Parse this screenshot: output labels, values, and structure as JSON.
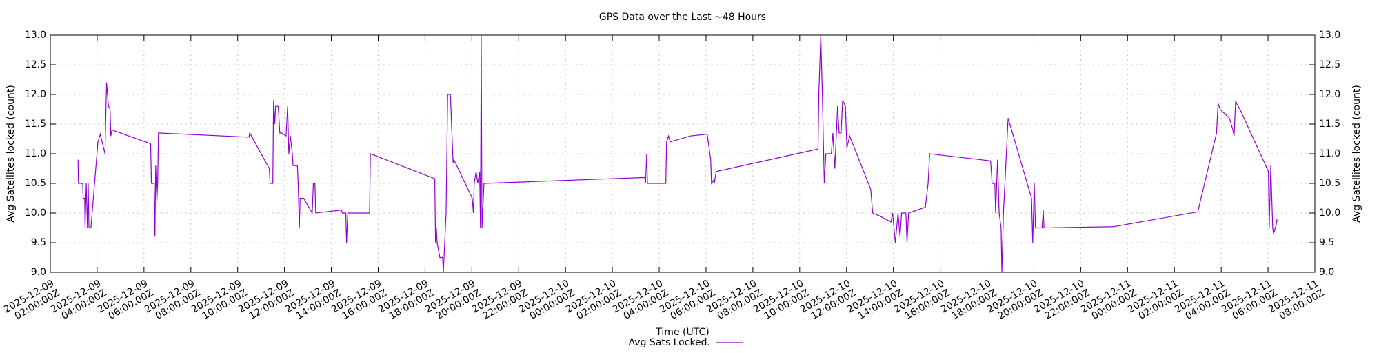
{
  "chart_data": {
    "type": "line",
    "title": "GPS Data over the Last ~48 Hours",
    "xlabel": "Time (UTC)",
    "ylabel": "Avg Satellites locked (count)",
    "y2label": "Avg Satellites locked (count)",
    "xlim": [
      "2025-12-09T02:00:00Z",
      "2025-12-11T08:00:00Z"
    ],
    "xticks": [
      {
        "value": "2025-12-09T02:00:00Z",
        "label": "2025-12-09\n02:00:00Z"
      },
      {
        "value": "2025-12-09T04:00:00Z",
        "label": "2025-12-09\n04:00:00Z"
      },
      {
        "value": "2025-12-09T06:00:00Z",
        "label": "2025-12-09\n06:00:00Z"
      },
      {
        "value": "2025-12-09T08:00:00Z",
        "label": "2025-12-09\n08:00:00Z"
      },
      {
        "value": "2025-12-09T10:00:00Z",
        "label": "2025-12-09\n10:00:00Z"
      },
      {
        "value": "2025-12-09T12:00:00Z",
        "label": "2025-12-09\n12:00:00Z"
      },
      {
        "value": "2025-12-09T14:00:00Z",
        "label": "2025-12-09\n14:00:00Z"
      },
      {
        "value": "2025-12-09T16:00:00Z",
        "label": "2025-12-09\n16:00:00Z"
      },
      {
        "value": "2025-12-09T18:00:00Z",
        "label": "2025-12-09\n18:00:00Z"
      },
      {
        "value": "2025-12-09T20:00:00Z",
        "label": "2025-12-09\n20:00:00Z"
      },
      {
        "value": "2025-12-09T22:00:00Z",
        "label": "2025-12-09\n22:00:00Z"
      },
      {
        "value": "2025-12-10T00:00:00Z",
        "label": "2025-12-10\n00:00:00Z"
      },
      {
        "value": "2025-12-10T02:00:00Z",
        "label": "2025-12-10\n02:00:00Z"
      },
      {
        "value": "2025-12-10T04:00:00Z",
        "label": "2025-12-10\n04:00:00Z"
      },
      {
        "value": "2025-12-10T06:00:00Z",
        "label": "2025-12-10\n06:00:00Z"
      },
      {
        "value": "2025-12-10T08:00:00Z",
        "label": "2025-12-10\n08:00:00Z"
      },
      {
        "value": "2025-12-10T10:00:00Z",
        "label": "2025-12-10\n10:00:00Z"
      },
      {
        "value": "2025-12-10T12:00:00Z",
        "label": "2025-12-10\n12:00:00Z"
      },
      {
        "value": "2025-12-10T14:00:00Z",
        "label": "2025-12-10\n14:00:00Z"
      },
      {
        "value": "2025-12-10T16:00:00Z",
        "label": "2025-12-10\n16:00:00Z"
      },
      {
        "value": "2025-12-10T18:00:00Z",
        "label": "2025-12-10\n18:00:00Z"
      },
      {
        "value": "2025-12-10T20:00:00Z",
        "label": "2025-12-10\n20:00:00Z"
      },
      {
        "value": "2025-12-10T22:00:00Z",
        "label": "2025-12-10\n22:00:00Z"
      },
      {
        "value": "2025-12-11T00:00:00Z",
        "label": "2025-12-11\n00:00:00Z"
      },
      {
        "value": "2025-12-11T02:00:00Z",
        "label": "2025-12-11\n02:00:00Z"
      },
      {
        "value": "2025-12-11T04:00:00Z",
        "label": "2025-12-11\n04:00:00Z"
      },
      {
        "value": "2025-12-11T06:00:00Z",
        "label": "2025-12-11\n06:00:00Z"
      },
      {
        "value": "2025-12-11T08:00:00Z",
        "label": "2025-12-11\n08:00:00Z"
      }
    ],
    "ylim": [
      9,
      13
    ],
    "yticks": [
      {
        "value": 9,
        "label": "9.0"
      },
      9.5,
      {
        "value": 10,
        "label": "10.0"
      },
      10.5,
      {
        "value": 11,
        "label": "11.0"
      },
      11.5,
      {
        "value": 12,
        "label": "12.0"
      },
      12.5,
      {
        "value": 13,
        "label": "13.0"
      }
    ],
    "y2lim": [
      9,
      13
    ],
    "y2ticks": [
      {
        "value": 9,
        "label": "9.0"
      },
      9.5,
      {
        "value": 10,
        "label": "10.0"
      },
      10.5,
      {
        "value": 11,
        "label": "11.0"
      },
      11.5,
      {
        "value": 12,
        "label": "12.0"
      },
      12.5,
      {
        "value": 13,
        "label": "13.0"
      }
    ],
    "grid": true,
    "legend": "bottom",
    "series": [
      {
        "name": "Avg Sats Locked.",
        "color": "#9400d3",
        "x": [
          "2025-12-09T03:11:00Z",
          "2025-12-09T03:12:00Z",
          "2025-12-09T03:14:00Z",
          "2025-12-09T03:23:00Z",
          "2025-12-09T03:24:00Z",
          "2025-12-09T03:28:00Z",
          "2025-12-09T03:29:00Z",
          "2025-12-09T03:32:00Z",
          "2025-12-09T03:35:00Z",
          "2025-12-09T03:37:00Z",
          "2025-12-09T03:39:00Z",
          "2025-12-09T03:44:00Z",
          "2025-12-09T03:57:00Z",
          "2025-12-09T04:02:00Z",
          "2025-12-09T04:08:00Z",
          "2025-12-09T04:20:00Z",
          "2025-12-09T04:24:00Z",
          "2025-12-09T04:29:00Z",
          "2025-12-09T04:33:00Z",
          "2025-12-09T04:35:00Z",
          "2025-12-09T04:38:00Z",
          "2025-12-09T06:17:00Z",
          "2025-12-09T06:19:00Z",
          "2025-12-09T06:26:00Z",
          "2025-12-09T06:28:00Z",
          "2025-12-09T06:30:00Z",
          "2025-12-09T06:33:00Z",
          "2025-12-09T06:35:00Z",
          "2025-12-09T06:37:00Z",
          "2025-12-09T10:29:00Z",
          "2025-12-09T10:31:00Z",
          "2025-12-09T11:21:00Z",
          "2025-12-09T11:23:00Z",
          "2025-12-09T11:30:00Z",
          "2025-12-09T11:32:00Z",
          "2025-12-09T11:35:00Z",
          "2025-12-09T11:37:00Z",
          "2025-12-09T11:44:00Z",
          "2025-12-09T11:48:00Z",
          "2025-12-09T11:53:00Z",
          "2025-12-09T12:04:00Z",
          "2025-12-09T12:08:00Z",
          "2025-12-09T12:11:00Z",
          "2025-12-09T12:15:00Z",
          "2025-12-09T12:20:00Z",
          "2025-12-09T12:22:00Z",
          "2025-12-09T12:33:00Z",
          "2025-12-09T12:35:00Z",
          "2025-12-09T12:38:00Z",
          "2025-12-09T12:40:00Z",
          "2025-12-09T12:49:00Z",
          "2025-12-09T13:11:00Z",
          "2025-12-09T13:14:00Z",
          "2025-12-09T13:18:00Z",
          "2025-12-09T13:20:00Z",
          "2025-12-09T14:26:00Z",
          "2025-12-09T14:28:00Z",
          "2025-12-09T14:37:00Z",
          "2025-12-09T14:39:00Z",
          "2025-12-09T14:42:00Z",
          "2025-12-09T15:38:00Z",
          "2025-12-09T15:40:00Z",
          "2025-12-09T18:25:00Z",
          "2025-12-09T18:27:00Z",
          "2025-12-09T18:29:00Z",
          "2025-12-09T18:31:00Z",
          "2025-12-09T18:38:00Z",
          "2025-12-09T18:45:00Z",
          "2025-12-09T18:47:00Z",
          "2025-12-09T18:54:00Z",
          "2025-12-09T18:58:00Z",
          "2025-12-09T19:05:00Z",
          "2025-12-09T19:12:00Z",
          "2025-12-09T19:14:00Z",
          "2025-12-09T20:01:00Z",
          "2025-12-09T20:04:00Z",
          "2025-12-09T20:06:00Z",
          "2025-12-09T20:11:00Z",
          "2025-12-09T20:15:00Z",
          "2025-12-09T20:20:00Z",
          "2025-12-09T20:22:00Z",
          "2025-12-09T20:24:00Z",
          "2025-12-09T20:26:00Z",
          "2025-12-09T20:31:00Z",
          "2025-12-10T03:23:00Z",
          "2025-12-10T03:25:00Z",
          "2025-12-10T03:28:00Z",
          "2025-12-10T03:30:00Z",
          "2025-12-10T04:17:00Z",
          "2025-12-10T04:19:00Z",
          "2025-12-10T04:24:00Z",
          "2025-12-10T04:28:00Z",
          "2025-12-10T05:20:00Z",
          "2025-12-10T06:03:00Z",
          "2025-12-10T06:12:00Z",
          "2025-12-10T06:14:00Z",
          "2025-12-10T06:19:00Z",
          "2025-12-10T06:21:00Z",
          "2025-12-10T06:26:00Z",
          "2025-12-10T10:47:00Z",
          "2025-12-10T10:49:00Z",
          "2025-12-10T10:54:00Z",
          "2025-12-10T10:58:00Z",
          "2025-12-10T11:03:00Z",
          "2025-12-10T11:07:00Z",
          "2025-12-10T11:21:00Z",
          "2025-12-10T11:25:00Z",
          "2025-12-10T11:30:00Z",
          "2025-12-10T11:37:00Z",
          "2025-12-10T11:41:00Z",
          "2025-12-10T11:46:00Z",
          "2025-12-10T11:50:00Z",
          "2025-12-10T11:57:00Z",
          "2025-12-10T12:01:00Z",
          "2025-12-10T12:08:00Z",
          "2025-12-10T13:02:00Z",
          "2025-12-10T13:07:00Z",
          "2025-12-10T13:25:00Z",
          "2025-12-10T13:54:00Z",
          "2025-12-10T13:58:00Z",
          "2025-12-10T14:05:00Z",
          "2025-12-10T14:12:00Z",
          "2025-12-10T14:17:00Z",
          "2025-12-10T14:21:00Z",
          "2025-12-10T14:32:00Z",
          "2025-12-10T14:35:00Z",
          "2025-12-10T14:39:00Z",
          "2025-12-10T15:22:00Z",
          "2025-12-10T15:29:00Z",
          "2025-12-10T15:33:00Z",
          "2025-12-10T18:09:00Z",
          "2025-12-10T18:11:00Z",
          "2025-12-10T18:13:00Z",
          "2025-12-10T18:20:00Z",
          "2025-12-10T18:22:00Z",
          "2025-12-10T18:27:00Z",
          "2025-12-10T18:31:00Z",
          "2025-12-10T18:36:00Z",
          "2025-12-10T18:38:00Z",
          "2025-12-10T18:42:00Z",
          "2025-12-10T18:54:00Z",
          "2025-12-10T19:54:00Z",
          "2025-12-10T19:57:00Z",
          "2025-12-10T20:01:00Z",
          "2025-12-10T20:04:00Z",
          "2025-12-10T20:21:00Z",
          "2025-12-10T20:24:00Z",
          "2025-12-10T20:26:00Z",
          "2025-12-10T23:24:00Z",
          "2025-12-11T03:00:00Z",
          "2025-12-11T03:48:00Z",
          "2025-12-11T03:52:00Z",
          "2025-12-11T03:57:00Z",
          "2025-12-11T04:21:00Z",
          "2025-12-11T04:30:00Z",
          "2025-12-11T04:33:00Z",
          "2025-12-11T04:37:00Z",
          "2025-12-11T04:39:00Z",
          "2025-12-11T04:48:00Z",
          "2025-12-11T06:01:00Z",
          "2025-12-11T06:03:00Z",
          "2025-12-11T06:07:00Z",
          "2025-12-11T06:12:00Z",
          "2025-12-11T06:14:00Z",
          "2025-12-11T06:21:00Z",
          "2025-12-11T06:23:00Z"
        ],
        "values": [
          10.9,
          10.5,
          10.5,
          10.5,
          10.25,
          10.25,
          9.75,
          10.5,
          9.75,
          10.5,
          9.75,
          9.75,
          10.8,
          11.2,
          11.33,
          11.0,
          12.2,
          11.8,
          11.75,
          11.3,
          11.4,
          11.17,
          10.5,
          10.5,
          9.6,
          10.8,
          10.2,
          10.5,
          11.35,
          11.28,
          11.35,
          10.75,
          10.5,
          10.5,
          11.9,
          11.5,
          11.8,
          11.8,
          11.35,
          11.35,
          11.3,
          11.8,
          11.0,
          11.3,
          11.0,
          10.8,
          10.8,
          10.5,
          9.75,
          10.25,
          10.25,
          10.0,
          10.5,
          10.5,
          10.0,
          10.05,
          10.0,
          10.0,
          9.5,
          10.0,
          10.0,
          11.0,
          10.58,
          9.5,
          9.75,
          9.5,
          9.25,
          9.25,
          9.0,
          10.0,
          12.0,
          12.0,
          10.85,
          10.9,
          10.25,
          10.0,
          10.5,
          10.7,
          10.5,
          10.7,
          9.75,
          13.0,
          9.75,
          10.5,
          10.6,
          10.5,
          11.0,
          10.5,
          10.5,
          11.2,
          11.3,
          11.2,
          11.3,
          11.33,
          10.9,
          10.5,
          10.55,
          10.5,
          10.7,
          11.08,
          12.0,
          13.0,
          12.0,
          10.5,
          11.0,
          11.0,
          11.35,
          10.75,
          11.8,
          11.35,
          11.35,
          11.9,
          11.8,
          11.1,
          11.3,
          10.4,
          10.0,
          9.95,
          9.85,
          10.0,
          9.5,
          10.0,
          9.6,
          10.0,
          10.0,
          9.5,
          10.0,
          10.1,
          10.5,
          11.0,
          10.88,
          10.7,
          10.5,
          10.5,
          10.0,
          10.9,
          10.0,
          9.75,
          9.0,
          10.0,
          11.6,
          10.25,
          9.5,
          10.5,
          9.75,
          9.75,
          10.05,
          9.75,
          9.77,
          10.02,
          11.35,
          11.85,
          11.75,
          11.6,
          11.4,
          11.3,
          11.9,
          11.85,
          11.75,
          10.7,
          9.75,
          10.8,
          9.75,
          9.65,
          9.8,
          9.9
        ]
      }
    ]
  }
}
